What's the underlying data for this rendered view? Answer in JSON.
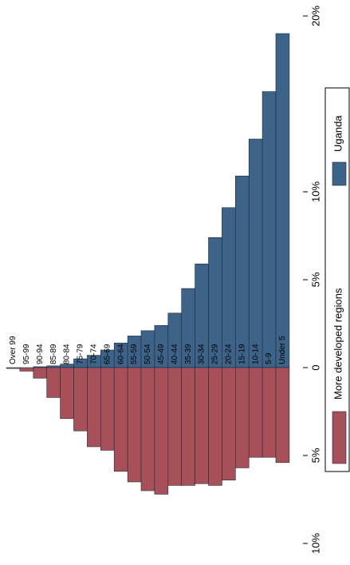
{
  "chart_data": {
    "type": "pyramid",
    "categories": [
      "Over 99",
      "95-99",
      "90-94",
      "85-89",
      "80-84",
      "75-79",
      "70-74",
      "65-69",
      "60-64",
      "55-59",
      "50-54",
      "45-49",
      "40-44",
      "35-39",
      "30-34",
      "25-29",
      "20-24",
      "15-19",
      "10-14",
      "5-9",
      "Under 5"
    ],
    "series": [
      {
        "name": "Uganda",
        "color": "#3e6389",
        "side": "up",
        "values": [
          0,
          0,
          0.05,
          0.1,
          0.2,
          0.5,
          0.7,
          1.0,
          1.4,
          1.8,
          2.1,
          2.4,
          3.1,
          4.5,
          5.9,
          7.4,
          9.1,
          10.9,
          13.0,
          15.7,
          19.0
        ]
      },
      {
        "name": "More developed regions",
        "color": "#a8505a",
        "side": "down",
        "values": [
          0.05,
          0.2,
          0.6,
          1.7,
          2.9,
          3.6,
          4.5,
          4.7,
          5.9,
          6.5,
          7.0,
          7.2,
          6.7,
          6.7,
          6.6,
          6.7,
          6.4,
          5.7,
          5.1,
          5.1,
          5.4
        ]
      }
    ],
    "ylim": [
      0,
      20
    ],
    "yticks": [
      {
        "value": 0,
        "label": "0"
      },
      {
        "value": 5,
        "label": "5%"
      },
      {
        "value": 10,
        "label": "10%"
      },
      {
        "value": 20,
        "label": "20%"
      }
    ],
    "ylim_down": [
      0,
      10
    ],
    "yticks_down": [
      {
        "value": 5,
        "label": "5%"
      },
      {
        "value": 10,
        "label": "10%"
      }
    ]
  }
}
